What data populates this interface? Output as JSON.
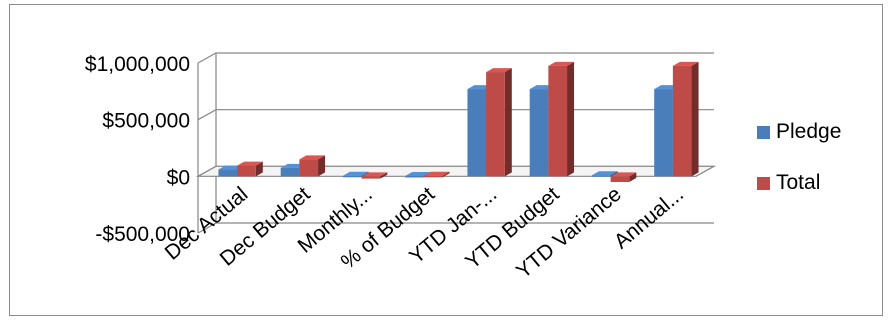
{
  "chart_data": {
    "type": "bar",
    "style": "3d-clustered-column",
    "categories": [
      "Dec Actual",
      "Dec Budget",
      "Monthly...",
      "% of Budget",
      "YTD Jan-...",
      "YTD Budget",
      "YTD Variance",
      "Annual..."
    ],
    "series": [
      {
        "name": "Pledge",
        "color": "#4a7ebb",
        "values": [
          60000,
          75000,
          5000,
          3000,
          770000,
          770000,
          10000,
          770000
        ]
      },
      {
        "name": "Total",
        "color": "#be4b48",
        "values": [
          95000,
          150000,
          -20000,
          5000,
          920000,
          975000,
          -50000,
          975000
        ]
      }
    ],
    "y_ticks": [
      1000000,
      500000,
      0,
      -500000
    ],
    "y_tick_labels": [
      "$1,000,000",
      "$500,000",
      "$0",
      "-$500,000"
    ],
    "ylim": [
      -500000,
      1000000
    ],
    "grid": true,
    "legend_position": "right",
    "title": "",
    "xlabel": "",
    "ylabel": ""
  }
}
